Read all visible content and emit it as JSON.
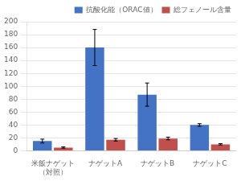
{
  "chart_data": {
    "type": "bar",
    "categories": [
      "米飯ナゲット\n（対照）",
      "ナゲットA",
      "ナゲットB",
      "ナゲットC"
    ],
    "series": [
      {
        "name": "抗酸化能（ORAC値）",
        "color": "#4472C4",
        "values": [
          15,
          160,
          87,
          40
        ],
        "errors": [
          3,
          28,
          18,
          2
        ]
      },
      {
        "name": "総フェノール含量",
        "color": "#C0504D",
        "values": [
          5,
          17,
          19,
          10
        ],
        "errors": [
          1,
          2,
          2,
          1
        ]
      }
    ],
    "ylim": [
      0,
      200
    ],
    "yticks": [
      0,
      20,
      40,
      60,
      80,
      100,
      120,
      140,
      160,
      180,
      200
    ],
    "grid": true,
    "legend": "upper right"
  }
}
